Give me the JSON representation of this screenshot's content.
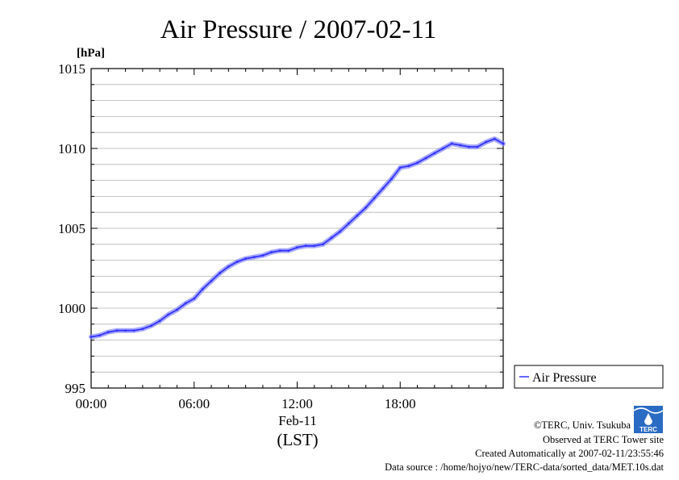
{
  "chart_data": {
    "type": "line",
    "title": "Air Pressure / 2007-02-11",
    "ylabel": "[hPa]",
    "xlabel": "(LST)",
    "x_date_label": "Feb-11",
    "ylim": [
      995,
      1015
    ],
    "xlim": [
      "00:00",
      "24:00"
    ],
    "y_ticks": [
      "995",
      "1000",
      "1005",
      "1010",
      "1015"
    ],
    "x_ticks": [
      "00:00",
      "06:00",
      "12:00",
      "18:00"
    ],
    "grid": true,
    "legend_position": "right",
    "series": [
      {
        "name": "Air Pressure",
        "color": "#3333ff",
        "x": [
          "00:00",
          "00:30",
          "01:00",
          "01:30",
          "02:00",
          "02:30",
          "03:00",
          "03:30",
          "04:00",
          "04:30",
          "05:00",
          "05:30",
          "06:00",
          "06:30",
          "07:00",
          "07:30",
          "08:00",
          "08:30",
          "09:00",
          "09:30",
          "10:00",
          "10:30",
          "11:00",
          "11:30",
          "12:00",
          "12:30",
          "13:00",
          "13:30",
          "14:00",
          "14:30",
          "15:00",
          "15:30",
          "16:00",
          "16:30",
          "17:00",
          "17:30",
          "18:00",
          "18:30",
          "19:00",
          "19:30",
          "20:00",
          "20:30",
          "21:00",
          "21:30",
          "22:00",
          "22:30",
          "23:00",
          "23:30",
          "24:00"
        ],
        "y": [
          998.2,
          998.3,
          998.5,
          998.6,
          998.6,
          998.6,
          998.7,
          998.9,
          999.2,
          999.6,
          999.9,
          1000.3,
          1000.6,
          1001.2,
          1001.7,
          1002.2,
          1002.6,
          1002.9,
          1003.1,
          1003.2,
          1003.3,
          1003.5,
          1003.6,
          1003.6,
          1003.8,
          1003.9,
          1003.9,
          1004.0,
          1004.4,
          1004.8,
          1005.3,
          1005.8,
          1006.3,
          1006.9,
          1007.5,
          1008.1,
          1008.8,
          1008.9,
          1009.1,
          1009.4,
          1009.7,
          1010.0,
          1010.3,
          1010.2,
          1010.1,
          1010.1,
          1010.4,
          1010.6,
          1010.3
        ]
      }
    ]
  },
  "footer": {
    "copyright": "©TERC, Univ. Tsukuba",
    "observed": "Observed at TERC Tower site",
    "created": "Created Automatically at 2007-02-11/23:55:46",
    "source": "Data source : /home/hojyo/new/TERC-data/sorted_data/MET.10s.dat",
    "logo_text": "TERC"
  }
}
